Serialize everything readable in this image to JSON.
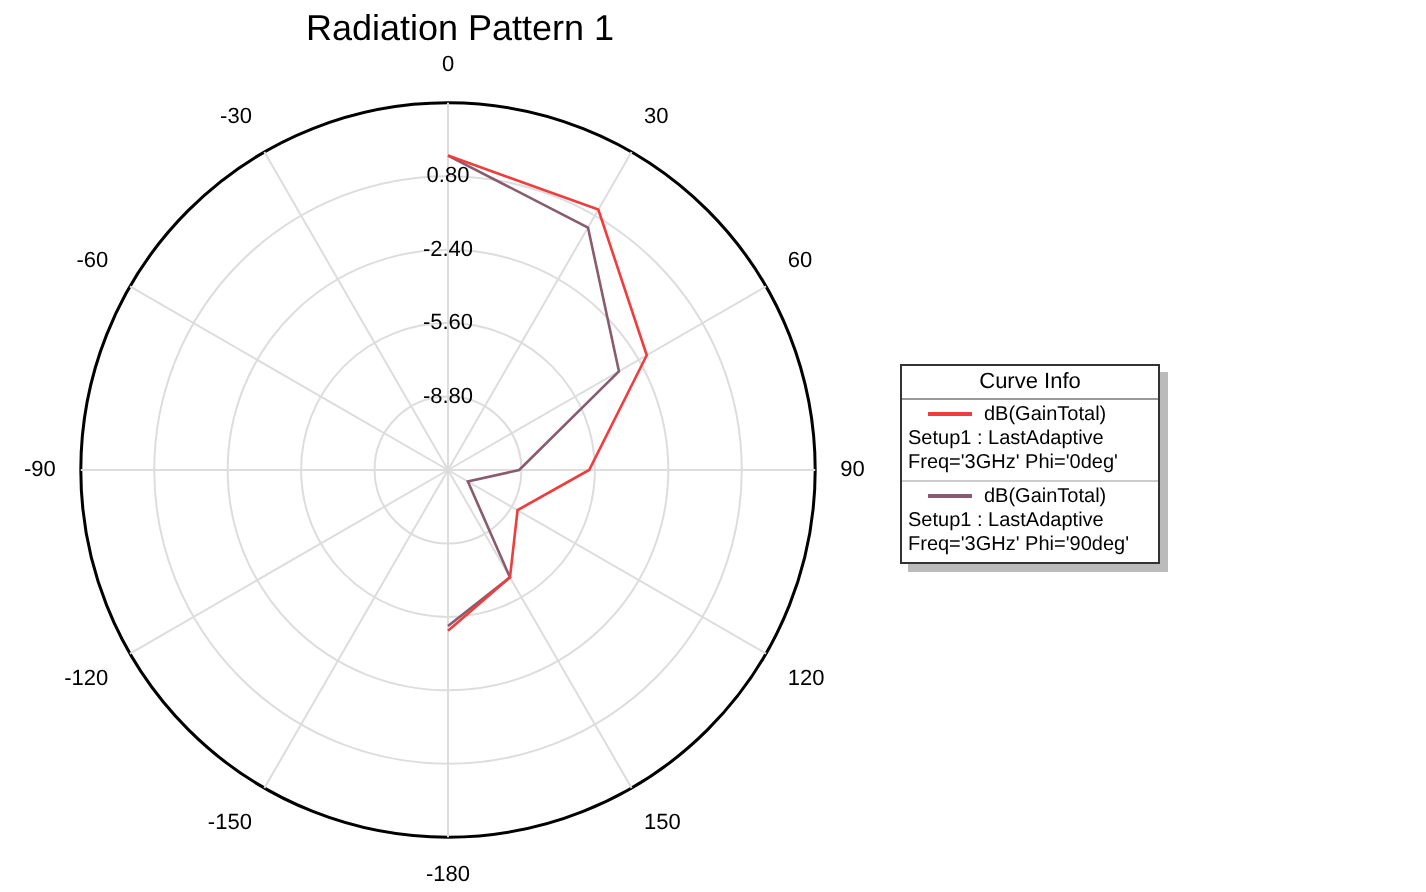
{
  "chart_data": {
    "type": "radar",
    "title": "Radiation Pattern 1",
    "legend_title": "Curve Info",
    "categories": [
      "0",
      "30",
      "60",
      "90",
      "120",
      "150",
      "-180",
      "-150",
      "-120",
      "-90",
      "-60",
      "-30"
    ],
    "series": [
      {
        "name": "dB(GainTotal)\nSetup1 : LastAdaptive\nFreq='3GHz' Phi='0deg'",
        "color": "#f03c3c",
        "values": [
          1.7,
          1.1,
          -2.0,
          -5.85,
          -8.5,
          -6.6,
          -5.0,
          null,
          null,
          null,
          null,
          null
        ]
      },
      {
        "name": "dB(GainTotal)\nSetup1 : LastAdaptive\nFreq='3GHz' Phi='90deg'",
        "color": "#8a5a6e",
        "values": [
          1.7,
          0.2,
          -3.4,
          -8.9,
          -11.0,
          -6.6,
          -5.2,
          null,
          null,
          null,
          null,
          null
        ]
      }
    ],
    "ylim": [
      -12,
      4
    ],
    "yticks": [
      {
        "value": -8.8,
        "label": "-8.80"
      },
      {
        "value": -5.6,
        "label": "-5.60"
      },
      {
        "value": -2.4,
        "label": "-2.40"
      },
      {
        "value": 0.8,
        "label": "0.80"
      }
    ],
    "grid": true,
    "legend": "right"
  }
}
